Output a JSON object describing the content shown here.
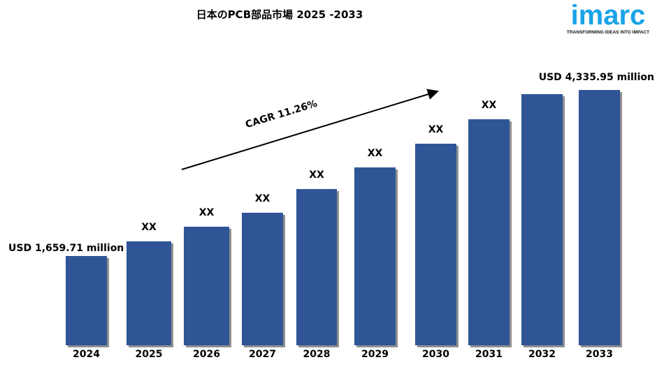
{
  "chart_data": {
    "type": "bar",
    "title": "日本のPCB部品市場  2025 -2033",
    "categories": [
      "2024",
      "2025",
      "2026",
      "2027",
      "2028",
      "2029",
      "2030",
      "2031",
      "2032",
      "2033"
    ],
    "values": [
      1659.71,
      1896,
      2132,
      2357,
      2739,
      3088,
      3470,
      3864,
      4269,
      4335.95
    ],
    "data_labels": [
      "USD 1,659.71 million",
      "XX",
      "XX",
      "XX",
      "XX",
      "XX",
      "XX",
      "XX",
      "",
      "USD 4,335.95 million"
    ],
    "unit": "USD million",
    "annotation": "CAGR 11.26%",
    "bar_color": "#2f5597",
    "grid": false,
    "legend": "none"
  },
  "logo": {
    "word": "imarc",
    "tagline": "TRANSFORMING IDEAS INTO IMPACT"
  }
}
